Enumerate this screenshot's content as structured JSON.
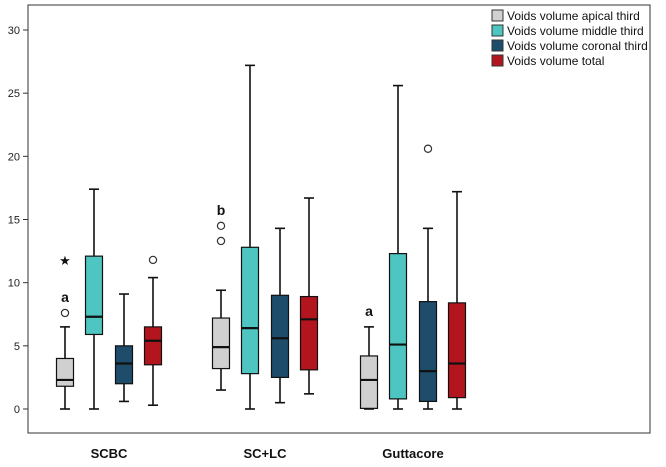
{
  "chart_data": {
    "type": "boxplot",
    "title": "",
    "xlabel": "",
    "ylabel": "",
    "ylim": [
      -2,
      31.5
    ],
    "yticks": [
      0,
      5,
      10,
      15,
      20,
      25,
      30
    ],
    "categories": [
      "SCBC",
      "SC+LC",
      "Guttacore"
    ],
    "series": [
      {
        "name": "Voids volume apical third",
        "color": "#d0d0d0"
      },
      {
        "name": "Voids volume middle third",
        "color": "#4ec5c1"
      },
      {
        "name": "Voids volume coronal third",
        "color": "#1e4d6b"
      },
      {
        "name": "Voids volume total",
        "color": "#b3151f"
      }
    ],
    "boxes": [
      {
        "category": "SCBC",
        "series": "Voids volume apical third",
        "min": 0,
        "q1": 1.8,
        "median": 2.3,
        "q3": 4.0,
        "max": 6.5,
        "outliers": [
          7.6
        ],
        "extremes": [
          11.7
        ],
        "label": "a"
      },
      {
        "category": "SCBC",
        "series": "Voids volume middle third",
        "min": 0,
        "q1": 5.9,
        "median": 7.3,
        "q3": 12.1,
        "max": 17.4,
        "outliers": [],
        "extremes": []
      },
      {
        "category": "SCBC",
        "series": "Voids volume coronal third",
        "min": 0.6,
        "q1": 2.0,
        "median": 3.6,
        "q3": 5.0,
        "max": 9.1,
        "outliers": [],
        "extremes": []
      },
      {
        "category": "SCBC",
        "series": "Voids volume total",
        "min": 0.3,
        "q1": 3.5,
        "median": 5.4,
        "q3": 6.5,
        "max": 10.4,
        "outliers": [
          11.8
        ],
        "extremes": []
      },
      {
        "category": "SC+LC",
        "series": "Voids volume apical third",
        "min": 1.5,
        "q1": 3.2,
        "median": 4.9,
        "q3": 7.2,
        "max": 9.4,
        "outliers": [
          13.3,
          14.5
        ],
        "extremes": [],
        "label": "b"
      },
      {
        "category": "SC+LC",
        "series": "Voids volume middle third",
        "min": 0,
        "q1": 2.8,
        "median": 6.4,
        "q3": 12.8,
        "max": 27.2,
        "outliers": [],
        "extremes": []
      },
      {
        "category": "SC+LC",
        "series": "Voids volume coronal third",
        "min": 0.5,
        "q1": 2.5,
        "median": 5.6,
        "q3": 9.0,
        "max": 14.3,
        "outliers": [],
        "extremes": []
      },
      {
        "category": "SC+LC",
        "series": "Voids volume total",
        "min": 1.2,
        "q1": 3.1,
        "median": 7.1,
        "q3": 8.9,
        "max": 16.7,
        "outliers": [],
        "extremes": []
      },
      {
        "category": "Guttacore",
        "series": "Voids volume apical third",
        "min": 0,
        "q1": 0.05,
        "median": 2.3,
        "q3": 4.2,
        "max": 6.5,
        "outliers": [],
        "extremes": [],
        "label": "a"
      },
      {
        "category": "Guttacore",
        "series": "Voids volume middle third",
        "min": 0,
        "q1": 0.8,
        "median": 5.1,
        "q3": 12.3,
        "max": 25.6,
        "outliers": [],
        "extremes": []
      },
      {
        "category": "Guttacore",
        "series": "Voids volume coronal third",
        "min": 0,
        "q1": 0.6,
        "median": 3.0,
        "q3": 8.5,
        "max": 14.3,
        "outliers": [
          20.6
        ],
        "extremes": []
      },
      {
        "category": "Guttacore",
        "series": "Voids volume total",
        "min": 0,
        "q1": 0.9,
        "median": 3.6,
        "q3": 8.4,
        "max": 17.2,
        "outliers": [],
        "extremes": []
      }
    ],
    "legend_position": "top-right"
  }
}
